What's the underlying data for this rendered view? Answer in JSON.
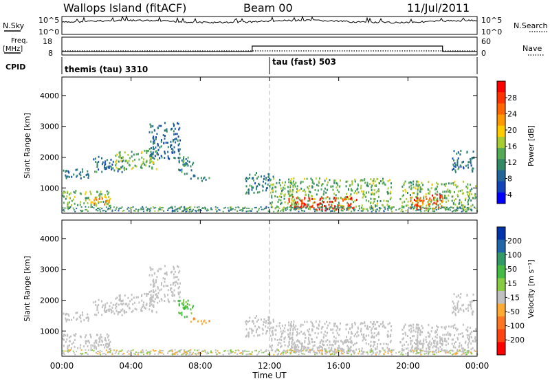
{
  "header": {
    "station": "Wallops Island (fitACF)",
    "beam": "Beam 00",
    "date": "11/Jul/2011"
  },
  "panels": {
    "nsky_label": "N.Sky",
    "nsky_ticks": [
      "10^5",
      "10^0"
    ],
    "nsearch_label": "N.Search",
    "nsearch_ticks": [
      "10^5",
      "10^0"
    ],
    "freq_label": "Freq.",
    "freq_unit": "[MHz]",
    "freq_ticks": [
      "18",
      "8"
    ],
    "nave_label": "Nave",
    "nave_ticks": [
      "60",
      "0"
    ],
    "cpid_label": "CPID",
    "cpid_modes": [
      "themis (tau) 3310",
      "tau (fast) 503"
    ]
  },
  "colorbars": {
    "power": {
      "label": "Power [dB]",
      "ticks": [
        "28",
        "24",
        "20",
        "16",
        "12",
        "8",
        "4"
      ],
      "colors": [
        "#ff0000",
        "#ff3300",
        "#ff6600",
        "#ff9900",
        "#ffcc00",
        "#aacc33",
        "#55aa55",
        "#338866",
        "#226699",
        "#1144bb",
        "#0000ff"
      ]
    },
    "velocity": {
      "label": "Velocity [m s⁻¹]",
      "ticks": [
        "200",
        "100",
        "50",
        "15",
        "-15",
        "-50",
        "-100",
        "-200"
      ],
      "colors": [
        "#0033aa",
        "#2266aa",
        "#339966",
        "#44bb44",
        "#88cc44",
        "#c0c0c0",
        "#ffaa33",
        "#ff7722",
        "#ff4411",
        "#ff0000"
      ]
    }
  },
  "chart_data": {
    "type": "heatmap",
    "xlabel": "Time UT",
    "x_ticks": [
      "00:00",
      "04:00",
      "08:00",
      "12:00",
      "16:00",
      "20:00",
      "00:00"
    ],
    "xlim_hours": [
      0,
      24
    ],
    "ylabel": "Slant Range [km]",
    "y_ticks": [
      "4000",
      "3000",
      "2000",
      "1000"
    ],
    "ylim_km": [
      180,
      4600
    ],
    "cpid_change_hour": 12,
    "freq_step": {
      "hours": [
        0,
        11,
        11,
        22,
        22,
        24
      ],
      "mhz": [
        10,
        10,
        13,
        13,
        10,
        10
      ]
    },
    "echo_regions": [
      {
        "t0": 0.0,
        "t1": 1.8,
        "r0": 1300,
        "r1": 1600,
        "power": 8,
        "vel": 0
      },
      {
        "t0": 0.0,
        "t1": 2.8,
        "r0": 400,
        "r1": 900,
        "power": 14,
        "vel": 0
      },
      {
        "t0": 1.5,
        "t1": 2.8,
        "r0": 450,
        "r1": 700,
        "power": 22,
        "vel": 0
      },
      {
        "t0": 1.8,
        "t1": 3.6,
        "r0": 1500,
        "r1": 2000,
        "power": 8,
        "vel": 0
      },
      {
        "t0": 3.0,
        "t1": 5.6,
        "r0": 1600,
        "r1": 2200,
        "power": 14,
        "vel": 0
      },
      {
        "t0": 5.0,
        "t1": 6.8,
        "r0": 1900,
        "r1": 3100,
        "power": 8,
        "vel": 0
      },
      {
        "t0": 6.6,
        "t1": 7.6,
        "r0": 1400,
        "r1": 2000,
        "power": 10,
        "vel": 40
      },
      {
        "t0": 7.4,
        "t1": 8.6,
        "r0": 1200,
        "r1": 1400,
        "power": 10,
        "vel": -50
      },
      {
        "t0": 10.5,
        "t1": 12.2,
        "r0": 800,
        "r1": 1500,
        "power": 10,
        "vel": 0
      },
      {
        "t0": 12.0,
        "t1": 19.0,
        "r0": 300,
        "r1": 1300,
        "power": 14,
        "vel": 0
      },
      {
        "t0": 13.0,
        "t1": 17.0,
        "r0": 250,
        "r1": 700,
        "power": 28,
        "vel": 0
      },
      {
        "t0": 19.5,
        "t1": 23.9,
        "r0": 300,
        "r1": 1200,
        "power": 14,
        "vel": 0
      },
      {
        "t0": 20.0,
        "t1": 22.0,
        "r0": 300,
        "r1": 800,
        "power": 26,
        "vel": 0
      },
      {
        "t0": 22.5,
        "t1": 23.8,
        "r0": 1500,
        "r1": 2200,
        "power": 8,
        "vel": 0
      }
    ]
  }
}
